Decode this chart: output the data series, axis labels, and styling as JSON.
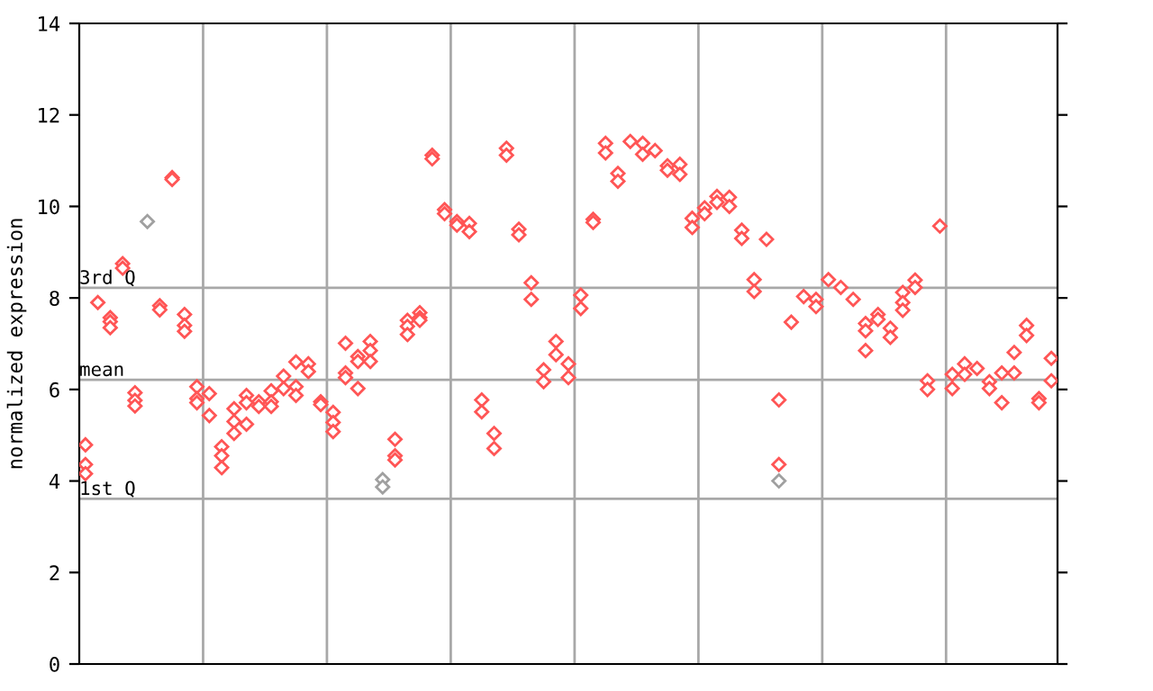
{
  "chart_data": {
    "type": "scatter",
    "ylabel": "normalized expression",
    "categories": [
      null,
      null,
      null,
      null,
      null,
      null,
      null,
      null,
      null,
      null,
      null,
      null,
      null,
      null,
      null,
      null,
      null,
      null,
      null,
      null,
      null,
      null,
      null,
      null,
      null,
      null,
      null,
      null,
      null,
      null,
      null,
      null,
      null,
      null,
      null,
      null,
      null,
      null,
      null,
      null,
      null,
      null,
      null,
      null,
      null,
      null,
      null,
      null,
      null,
      null,
      null,
      null,
      null,
      null,
      null,
      null,
      null,
      null,
      null,
      null,
      null,
      null,
      null,
      null,
      null,
      null,
      null,
      null,
      null,
      null,
      null,
      null,
      null,
      null,
      null,
      null,
      null,
      null,
      null
    ],
    "ylim": [
      0,
      14
    ],
    "yticks": [
      0,
      2,
      4,
      6,
      8,
      10,
      12,
      14
    ],
    "grid": "x",
    "marker": "diamond",
    "tick_labels": "y",
    "ref_lines": [
      {
        "axis": "y",
        "value": 8.22,
        "label": "3rd Q",
        "color": "#a8a8a8"
      },
      {
        "axis": "y",
        "value": 6.21,
        "label": "mean",
        "color": "#a8a8a8"
      },
      {
        "axis": "y",
        "value": 3.61,
        "label": "1st Q",
        "color": "#a8a8a8"
      }
    ],
    "series": [
      {
        "color": "#ff5555",
        "values": [
          4.79,
          7.9,
          7.57,
          8.75,
          5.93,
          null,
          7.83,
          10.63,
          7.64,
          6.06,
          5.91,
          4.75,
          5.58,
          5.87,
          5.73,
          5.97,
          6.29,
          6.6,
          6.56,
          5.73,
          5.5,
          7.01,
          6.72,
          7.05,
          null,
          4.91,
          7.51,
          7.68,
          11.12,
          9.93,
          9.67,
          9.63,
          5.77,
          5.04,
          11.27,
          9.5,
          8.33,
          6.43,
          7.05,
          6.56,
          8.06,
          9.72,
          11.38,
          10.72,
          11.42,
          11.38,
          11.22,
          10.89,
          10.92,
          9.74,
          9.97,
          10.22,
          10.2,
          9.48,
          8.4,
          9.28,
          5.77,
          7.47,
          8.03,
          7.97,
          8.4,
          8.23,
          7.97,
          7.44,
          7.64,
          7.34,
          8.12,
          8.39,
          6.19,
          9.57,
          6.33,
          6.56,
          6.46,
          6.17,
          6.36,
          6.81,
          7.4,
          5.8,
          6.68
        ]
      },
      {
        "color": "#ff5555",
        "values": [
          4.36,
          null,
          7.48,
          8.65,
          5.76,
          null,
          7.74,
          10.59,
          7.4,
          5.8,
          5.43,
          4.55,
          5.3,
          5.71,
          5.63,
          5.73,
          6.02,
          6.06,
          6.39,
          5.67,
          5.28,
          6.36,
          6.61,
          6.85,
          null,
          4.55,
          7.38,
          7.57,
          11.04,
          9.84,
          9.59,
          9.45,
          5.51,
          4.71,
          11.12,
          9.38,
          7.97,
          6.17,
          6.76,
          6.26,
          7.77,
          9.65,
          11.17,
          10.55,
          null,
          11.14,
          null,
          10.79,
          10.7,
          9.54,
          9.84,
          10.09,
          10.0,
          9.3,
          8.14,
          null,
          4.36,
          null,
          null,
          7.81,
          null,
          null,
          null,
          7.28,
          7.53,
          7.14,
          7.9,
          8.23,
          6.0,
          null,
          6.02,
          6.33,
          null,
          6.02,
          5.71,
          6.36,
          7.18,
          5.71,
          6.19
        ]
      },
      {
        "color": "#ff5555",
        "values": [
          4.16,
          null,
          7.35,
          null,
          5.64,
          null,
          null,
          null,
          7.27,
          5.71,
          null,
          4.29,
          5.04,
          5.24,
          null,
          5.63,
          null,
          5.87,
          null,
          null,
          5.08,
          6.26,
          6.02,
          6.61,
          null,
          4.46,
          7.2,
          7.51,
          null,
          null,
          null,
          null,
          null,
          null,
          null,
          null,
          null,
          null,
          null,
          null,
          null,
          null,
          null,
          null,
          null,
          null,
          null,
          null,
          null,
          null,
          null,
          null,
          null,
          null,
          null,
          null,
          null,
          null,
          null,
          null,
          null,
          null,
          null,
          6.85,
          null,
          null,
          7.73,
          null,
          null,
          null,
          null,
          null,
          null,
          null,
          null,
          null,
          null,
          null,
          null
        ]
      },
      {
        "color": "#a0a0a0",
        "values": [
          null,
          null,
          null,
          null,
          null,
          9.67,
          null,
          null,
          null,
          null,
          null,
          null,
          null,
          null,
          null,
          null,
          null,
          null,
          null,
          null,
          null,
          null,
          null,
          null,
          4.03,
          null,
          null,
          null,
          null,
          null,
          null,
          null,
          null,
          null,
          null,
          null,
          null,
          null,
          null,
          null,
          null,
          null,
          null,
          null,
          null,
          null,
          null,
          null,
          null,
          null,
          null,
          null,
          null,
          null,
          null,
          null,
          4.0,
          null,
          null,
          null,
          null,
          null,
          null,
          null,
          null,
          null,
          null,
          null,
          null,
          null,
          null,
          null,
          null,
          null,
          null,
          null,
          null,
          null,
          null
        ]
      },
      {
        "color": "#a0a0a0",
        "values": [
          null,
          null,
          null,
          null,
          null,
          null,
          null,
          null,
          null,
          null,
          null,
          null,
          null,
          null,
          null,
          null,
          null,
          null,
          null,
          null,
          null,
          null,
          null,
          null,
          3.87,
          null,
          null,
          null,
          null,
          null,
          null,
          null,
          null,
          null,
          null,
          null,
          null,
          null,
          null,
          null,
          null,
          null,
          null,
          null,
          null,
          null,
          null,
          null,
          null,
          null,
          null,
          null,
          null,
          null,
          null,
          null,
          null,
          null,
          null,
          null,
          null,
          null,
          null,
          null,
          null,
          null,
          null,
          null,
          null,
          null,
          null,
          null,
          null,
          null,
          null,
          null,
          null,
          null,
          null
        ]
      }
    ]
  }
}
